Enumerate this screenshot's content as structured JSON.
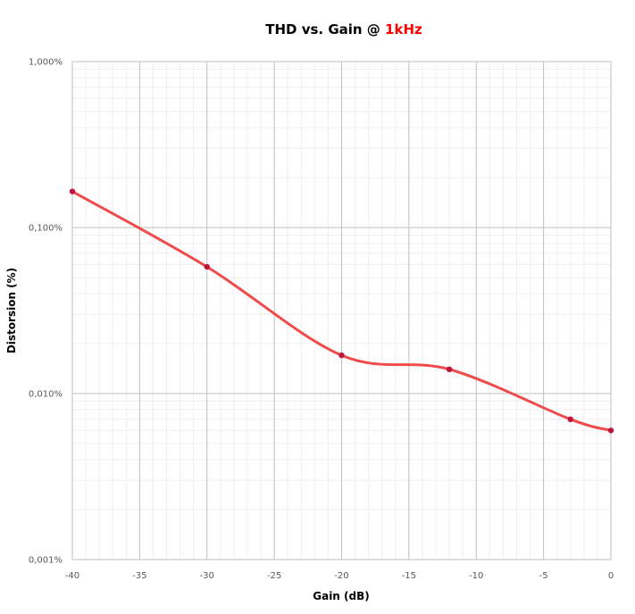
{
  "chart_data": {
    "type": "line",
    "title": "THD vs. Gain @ ",
    "title_highlight": "1kHz",
    "title_highlight_color": "#ff0000",
    "xlabel": "Gain (dB)",
    "ylabel": "Distorsion (%)",
    "xlim": [
      -40,
      0
    ],
    "ylim": [
      0.001,
      1.0
    ],
    "y_scale": "log",
    "x_tick_values": [
      -40,
      -35,
      -30,
      -25,
      -20,
      -15,
      -10,
      -5,
      0
    ],
    "x_tick_labels": [
      "-40",
      "-35",
      "-30",
      "-25",
      "-20",
      "-15",
      "-10",
      "-5",
      "0"
    ],
    "y_tick_values": [
      0.001,
      0.01,
      0.1,
      1.0
    ],
    "y_tick_labels": [
      "0,001%",
      "0,010%",
      "0,100%",
      "1,000%"
    ],
    "grid": true,
    "line_color": "#f04b4b",
    "marker_color": "#c0143c",
    "series": [
      {
        "x": [
          -40,
          -30,
          -20,
          -12,
          -3,
          0
        ],
        "y": [
          0.165,
          0.058,
          0.017,
          0.014,
          0.007,
          0.006
        ]
      }
    ]
  }
}
